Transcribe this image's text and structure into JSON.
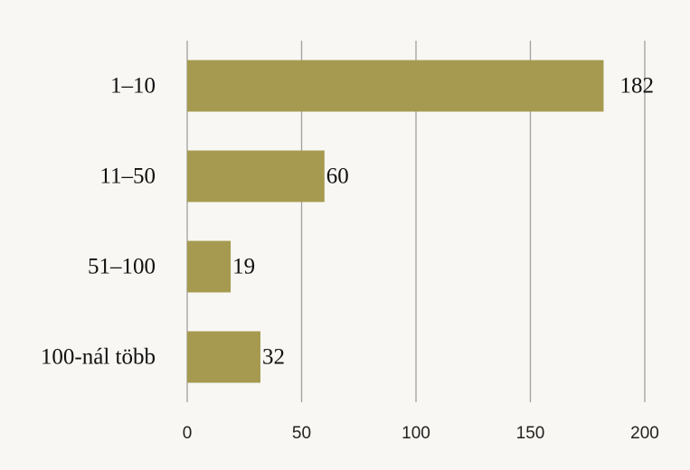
{
  "chart_data": {
    "type": "bar",
    "orientation": "horizontal",
    "categories": [
      "1–10",
      "11–50",
      "51–100",
      "100-nál több"
    ],
    "values": [
      182,
      60,
      19,
      32
    ],
    "color": "#a59a4f",
    "xlim": [
      0,
      200
    ],
    "xticks": [
      0,
      50,
      100,
      150,
      200
    ],
    "grid": true
  }
}
